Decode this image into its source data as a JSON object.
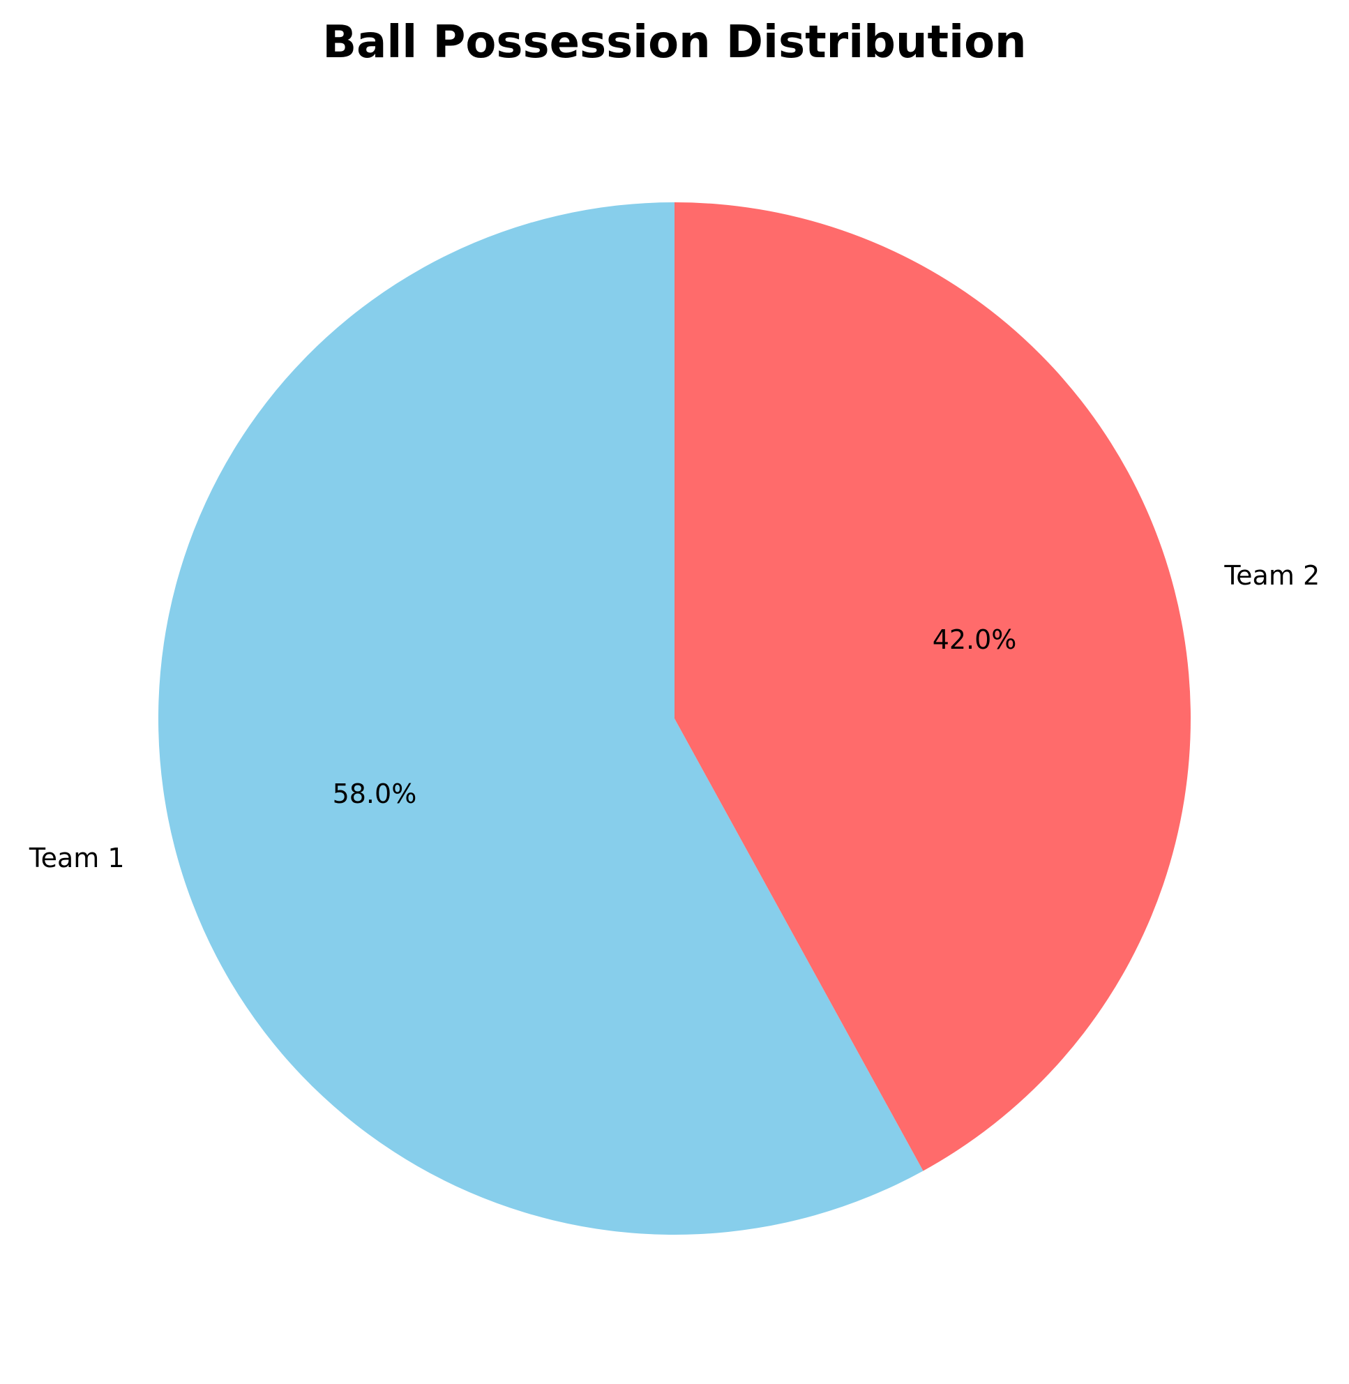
{
  "chart_data": {
    "type": "pie",
    "title": "Ball Possession Distribution",
    "categories": [
      "Team 1",
      "Team 2"
    ],
    "values": [
      58.0,
      42.0
    ],
    "value_labels": [
      "58.0%",
      "42.0%"
    ],
    "colors": [
      "#87CEEB",
      "#FF6B6B"
    ],
    "start_angle_deg": 90,
    "direction": "counterclockwise",
    "legend": "none"
  }
}
